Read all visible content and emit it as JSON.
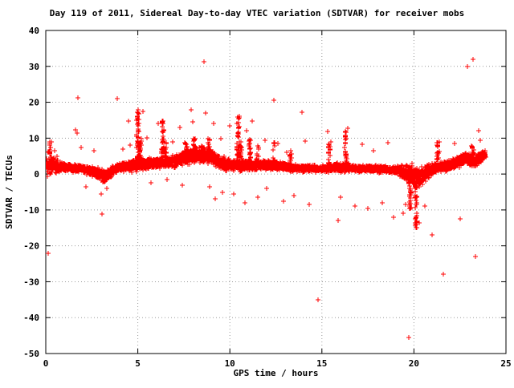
{
  "title": "Day 119 of 2011, Sidereal Day-to-day VTEC variation (SDTVAR) for receiver mobs",
  "colors": {
    "marker": "#ff0000",
    "grid": "#9a9a9a",
    "axis": "#000000",
    "background": "#ffffff"
  },
  "chart_data": {
    "type": "scatter",
    "title": "Day 119 of 2011, Sidereal Day-to-day VTEC variation (SDTVAR) for receiver mobs",
    "xlabel": "GPS time / hours",
    "ylabel": "SDTVAR / TECUs",
    "xlim": [
      0,
      25
    ],
    "ylim": [
      -50,
      40
    ],
    "xticks": [
      0,
      5,
      10,
      15,
      20,
      25
    ],
    "yticks": [
      -50,
      -40,
      -30,
      -20,
      -10,
      0,
      10,
      20,
      30,
      40
    ],
    "grid": true,
    "legend": "none",
    "marker": "plus",
    "marker_color": "#ff0000",
    "band": {
      "seed": 119,
      "n_points": 5200,
      "x_range": [
        0.05,
        23.9
      ],
      "mean_profile": [
        [
          0,
          2.0
        ],
        [
          0.5,
          2.5
        ],
        [
          1,
          1.8
        ],
        [
          2,
          1.5
        ],
        [
          2.8,
          0.3
        ],
        [
          3.2,
          -1.0
        ],
        [
          3.6,
          1.0
        ],
        [
          4,
          2.0
        ],
        [
          5,
          2.5
        ],
        [
          6,
          3.0
        ],
        [
          7,
          3.5
        ],
        [
          7.5,
          4.5
        ],
        [
          8,
          5.0
        ],
        [
          8.8,
          5.5
        ],
        [
          9.3,
          3.5
        ],
        [
          10,
          2.5
        ],
        [
          11,
          2.5
        ],
        [
          12,
          2.5
        ],
        [
          13,
          2.0
        ],
        [
          14,
          1.5
        ],
        [
          15,
          1.5
        ],
        [
          16,
          2.0
        ],
        [
          17,
          1.5
        ],
        [
          18,
          1.5
        ],
        [
          19,
          1.0
        ],
        [
          19.8,
          0.0
        ],
        [
          20.3,
          -1.0
        ],
        [
          21,
          1.5
        ],
        [
          22,
          2.5
        ],
        [
          22.8,
          4.5
        ],
        [
          23.3,
          3.5
        ],
        [
          23.9,
          5.5
        ]
      ],
      "spread_profile": [
        [
          0,
          2.0
        ],
        [
          0.5,
          1.5
        ],
        [
          1,
          0.8
        ],
        [
          2,
          0.7
        ],
        [
          3,
          1.2
        ],
        [
          4,
          0.8
        ],
        [
          5,
          1.2
        ],
        [
          6,
          1.0
        ],
        [
          7,
          1.2
        ],
        [
          8,
          1.6
        ],
        [
          9,
          1.4
        ],
        [
          10,
          1.2
        ],
        [
          11,
          1.0
        ],
        [
          12,
          1.0
        ],
        [
          13,
          0.8
        ],
        [
          14,
          0.7
        ],
        [
          15,
          0.7
        ],
        [
          16,
          0.9
        ],
        [
          17,
          0.7
        ],
        [
          18,
          0.7
        ],
        [
          19,
          0.8
        ],
        [
          20,
          2.2
        ],
        [
          20.5,
          2.0
        ],
        [
          21,
          1.0
        ],
        [
          22,
          1.0
        ],
        [
          23,
          1.3
        ],
        [
          23.9,
          1.0
        ]
      ]
    },
    "spikes": [
      {
        "x": 0.2,
        "y_min": 4,
        "y_max": 9,
        "n": 12
      },
      {
        "x": 5.0,
        "y_min": 3,
        "y_max": 18,
        "n": 50
      },
      {
        "x": 5.15,
        "y_min": 3,
        "y_max": 10,
        "n": 25
      },
      {
        "x": 6.35,
        "y_min": 3,
        "y_max": 15,
        "n": 40
      },
      {
        "x": 6.5,
        "y_min": 3,
        "y_max": 9,
        "n": 20
      },
      {
        "x": 7.6,
        "y_min": 4,
        "y_max": 9,
        "n": 25
      },
      {
        "x": 8.05,
        "y_min": 4,
        "y_max": 10,
        "n": 30
      },
      {
        "x": 8.5,
        "y_min": 4,
        "y_max": 9,
        "n": 25
      },
      {
        "x": 8.85,
        "y_min": 3,
        "y_max": 10,
        "n": 30
      },
      {
        "x": 10.45,
        "y_min": 2,
        "y_max": 16,
        "n": 45
      },
      {
        "x": 10.6,
        "y_min": 2,
        "y_max": 10,
        "n": 20
      },
      {
        "x": 11.1,
        "y_min": 2,
        "y_max": 10,
        "n": 35
      },
      {
        "x": 11.5,
        "y_min": 2,
        "y_max": 8,
        "n": 18
      },
      {
        "x": 12.4,
        "y_min": 2,
        "y_max": 9,
        "n": 20
      },
      {
        "x": 13.3,
        "y_min": 1.5,
        "y_max": 8,
        "n": 15
      },
      {
        "x": 15.4,
        "y_min": 1.5,
        "y_max": 9,
        "n": 20
      },
      {
        "x": 16.3,
        "y_min": 1.5,
        "y_max": 12,
        "n": 35
      },
      {
        "x": 19.8,
        "y_min": -10,
        "y_max": 1,
        "n": 25
      },
      {
        "x": 20.1,
        "y_min": -15,
        "y_max": 1,
        "n": 45
      },
      {
        "x": 21.3,
        "y_min": 2,
        "y_max": 9,
        "n": 20
      },
      {
        "x": 23.2,
        "y_min": 3,
        "y_max": 8,
        "n": 25
      }
    ],
    "outliers": [
      [
        0.15,
        -22
      ],
      [
        0.2,
        8.6
      ],
      [
        0.25,
        7.5
      ],
      [
        0.3,
        8.9
      ],
      [
        0.5,
        6.5
      ],
      [
        0.6,
        5.0
      ],
      [
        1.6,
        12.2
      ],
      [
        1.7,
        11.4
      ],
      [
        1.75,
        21.2
      ],
      [
        1.9,
        7.5
      ],
      [
        2.2,
        -3.5
      ],
      [
        2.6,
        6.5
      ],
      [
        3.0,
        -5.5
      ],
      [
        3.05,
        -11.2
      ],
      [
        3.3,
        -4.0
      ],
      [
        3.9,
        21.0
      ],
      [
        4.2,
        7.0
      ],
      [
        4.5,
        14.8
      ],
      [
        4.6,
        8.0
      ],
      [
        5.3,
        17.5
      ],
      [
        5.5,
        10.0
      ],
      [
        5.7,
        -2.5
      ],
      [
        6.1,
        14.2
      ],
      [
        6.6,
        -1.5
      ],
      [
        6.9,
        9.0
      ],
      [
        7.3,
        13.0
      ],
      [
        7.4,
        -3.0
      ],
      [
        7.9,
        17.8
      ],
      [
        8.0,
        14.5
      ],
      [
        8.6,
        31.2
      ],
      [
        8.7,
        17.0
      ],
      [
        8.9,
        -3.5
      ],
      [
        9.1,
        14.0
      ],
      [
        9.2,
        -7.0
      ],
      [
        9.5,
        9.8
      ],
      [
        9.6,
        -5.0
      ],
      [
        10.0,
        13.5
      ],
      [
        10.2,
        -5.5
      ],
      [
        10.5,
        16.0
      ],
      [
        10.8,
        -8.0
      ],
      [
        10.9,
        12.0
      ],
      [
        11.2,
        14.8
      ],
      [
        11.5,
        -6.5
      ],
      [
        11.9,
        9.5
      ],
      [
        12.0,
        -4.0
      ],
      [
        12.4,
        20.6
      ],
      [
        12.6,
        8.5
      ],
      [
        12.9,
        -7.5
      ],
      [
        13.1,
        6.0
      ],
      [
        13.5,
        -6.0
      ],
      [
        13.9,
        17.2
      ],
      [
        14.1,
        9.2
      ],
      [
        14.3,
        -8.5
      ],
      [
        14.8,
        -35.0
      ],
      [
        15.3,
        11.8
      ],
      [
        15.5,
        9.0
      ],
      [
        15.9,
        -13.0
      ],
      [
        16.0,
        -6.5
      ],
      [
        16.4,
        12.8
      ],
      [
        16.8,
        -9.0
      ],
      [
        17.2,
        8.3
      ],
      [
        17.5,
        -9.5
      ],
      [
        17.8,
        6.5
      ],
      [
        18.3,
        -8.0
      ],
      [
        18.6,
        8.8
      ],
      [
        18.9,
        -12.0
      ],
      [
        19.4,
        -11.0
      ],
      [
        19.55,
        -8.5
      ],
      [
        19.7,
        -45.5
      ],
      [
        20.3,
        -13.5
      ],
      [
        20.6,
        -9.0
      ],
      [
        21.0,
        -17.0
      ],
      [
        21.4,
        9.0
      ],
      [
        21.6,
        -28.0
      ],
      [
        22.2,
        8.5
      ],
      [
        22.5,
        -12.5
      ],
      [
        22.9,
        30.0
      ],
      [
        23.2,
        32.0
      ],
      [
        23.35,
        -23.0
      ],
      [
        23.5,
        12.0
      ],
      [
        23.6,
        9.5
      ]
    ]
  }
}
